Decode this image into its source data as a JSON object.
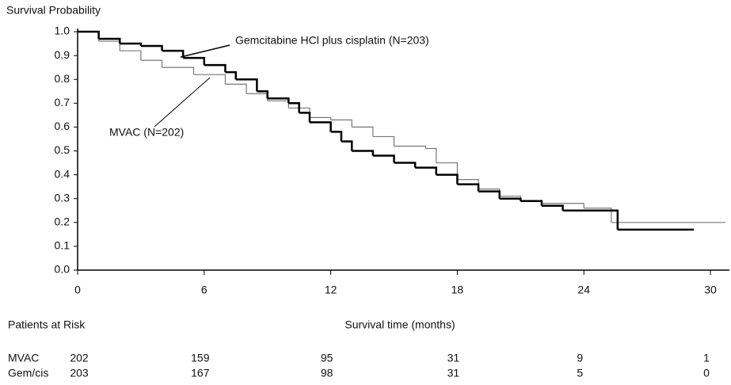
{
  "chart_data": {
    "type": "line",
    "step": true,
    "y_label": "Survival Probability",
    "x_label": "Survival time (months)",
    "xlim": [
      0,
      30.9
    ],
    "xticks": [
      0,
      6,
      12,
      18,
      24,
      30
    ],
    "ylim": [
      0,
      1
    ],
    "yticks": [
      {
        "value": 0,
        "label": "0.0"
      },
      0.1,
      0.2,
      0.3,
      0.4,
      0.5,
      0.6,
      0.7,
      0.8,
      0.9,
      {
        "value": 1,
        "label": "1.0"
      }
    ],
    "annotations": [
      "Gemcitabine HCl plus cisplatin (N=203)",
      "MVAC (N=202)"
    ],
    "series": [
      {
        "name": "Gem/cis",
        "color": "#000000",
        "width": 2.5,
        "x": [
          0,
          1,
          2,
          3,
          4,
          5,
          6,
          7,
          7.5,
          8.5,
          9,
          10,
          10.5,
          11,
          12,
          12.5,
          13,
          14,
          15,
          16,
          17,
          18,
          19,
          20,
          21,
          22,
          23,
          25.6,
          29.2
        ],
        "values": [
          1,
          0.97,
          0.95,
          0.94,
          0.92,
          0.89,
          0.86,
          0.83,
          0.8,
          0.75,
          0.72,
          0.7,
          0.66,
          0.62,
          0.58,
          0.54,
          0.5,
          0.48,
          0.45,
          0.43,
          0.4,
          0.36,
          0.33,
          0.3,
          0.29,
          0.27,
          0.25,
          0.17,
          0.17
        ]
      },
      {
        "name": "MVAC",
        "color": "#777777",
        "width": 1.2,
        "x": [
          0,
          1,
          2,
          3,
          4,
          5.5,
          7,
          8,
          9,
          10,
          11,
          12,
          13,
          14,
          15,
          16.5,
          17,
          18,
          19,
          20,
          21,
          22,
          24,
          25.3,
          30.7
        ],
        "values": [
          1,
          0.96,
          0.92,
          0.88,
          0.85,
          0.82,
          0.78,
          0.74,
          0.71,
          0.68,
          0.64,
          0.63,
          0.6,
          0.56,
          0.52,
          0.51,
          0.45,
          0.38,
          0.34,
          0.31,
          0.29,
          0.28,
          0.26,
          0.2,
          0.2
        ]
      }
    ],
    "risk_table": {
      "title": "Patients at Risk",
      "rows": [
        {
          "name": "MVAC",
          "values": [
            202,
            159,
            95,
            31,
            9,
            1
          ]
        },
        {
          "name": "Gem/cis",
          "values": [
            203,
            167,
            98,
            31,
            5,
            0
          ]
        }
      ]
    }
  }
}
